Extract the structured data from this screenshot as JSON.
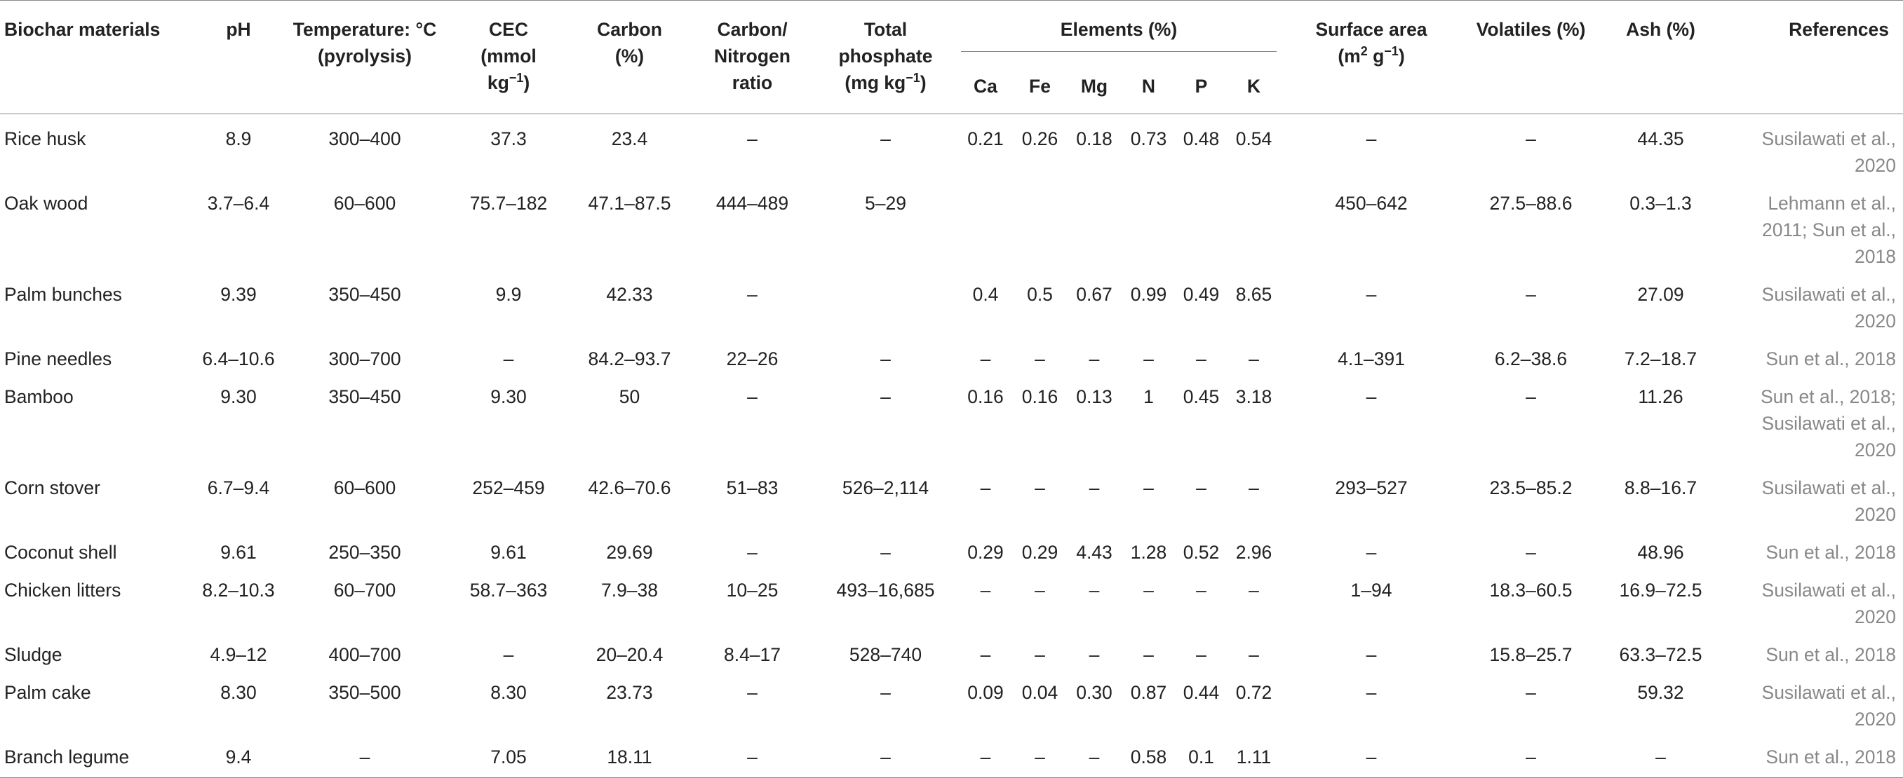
{
  "headers": {
    "material": "Biochar materials",
    "ph": "pH",
    "temp": "Temperature: °C (pyrolysis)",
    "cec_a": "CEC",
    "cec_b": "(mmol",
    "cec_unit": "kg",
    "cec_exp": "−1",
    "cec_close": ")",
    "carbon_a": "Carbon",
    "carbon_b": "(%)",
    "cn_a": "Carbon/",
    "cn_b": "Nitrogen",
    "cn_c": "ratio",
    "tp_a": "Total",
    "tp_b": "phosphate",
    "tp_unit": "(mg kg",
    "tp_exp": "−1",
    "tp_close": ")",
    "elements": "Elements (%)",
    "ca": "Ca",
    "fe": "Fe",
    "mg": "Mg",
    "n": "N",
    "p": "P",
    "k": "K",
    "sa_a": "Surface area",
    "sa_b": "(m",
    "sa_exp1": "2",
    "sa_mid": " g",
    "sa_exp2": "−1",
    "sa_close": ")",
    "volatiles": "Volatiles (%)",
    "ash": "Ash (%)",
    "references": "References"
  },
  "rows": [
    {
      "material": "Rice husk",
      "ph": "8.9",
      "temp": "300–400",
      "cec": "37.3",
      "carbon": "23.4",
      "cn": "–",
      "tp": "–",
      "ca": "0.21",
      "fe": "0.26",
      "mg": "0.18",
      "n": "0.73",
      "p": "0.48",
      "k": "0.54",
      "sa": "–",
      "vol": "–",
      "ash": "44.35",
      "ref": [
        "Susilawati et al.,",
        "2020"
      ]
    },
    {
      "material": "Oak wood",
      "ph": "3.7–6.4",
      "temp": "60–600",
      "cec": "75.7–182",
      "carbon": "47.1–87.5",
      "cn": "444–489",
      "tp": "5–29",
      "ca": "",
      "fe": "",
      "mg": "",
      "n": "",
      "p": "",
      "k": "",
      "sa": "450–642",
      "vol": "27.5–88.6",
      "ash": "0.3–1.3",
      "ref": [
        "Lehmann et al.,",
        "2011; Sun et al.,",
        "2018"
      ]
    },
    {
      "material": "Palm bunches",
      "ph": "9.39",
      "temp": "350–450",
      "cec": "9.9",
      "carbon": "42.33",
      "cn": "–",
      "tp": "",
      "ca": "0.4",
      "fe": "0.5",
      "mg": "0.67",
      "n": "0.99",
      "p": "0.49",
      "k": "8.65",
      "sa": "–",
      "vol": "–",
      "ash": "27.09",
      "ref": [
        "Susilawati et al.,",
        "2020"
      ]
    },
    {
      "material": "Pine needles",
      "ph": "6.4–10.6",
      "temp": "300–700",
      "cec": "–",
      "carbon": "84.2–93.7",
      "cn": "22–26",
      "tp": "–",
      "ca": "–",
      "fe": "–",
      "mg": "–",
      "n": "–",
      "p": "–",
      "k": "–",
      "sa": "4.1–391",
      "vol": "6.2–38.6",
      "ash": "7.2–18.7",
      "ref": [
        "Sun et al., 2018"
      ]
    },
    {
      "material": "Bamboo",
      "ph": "9.30",
      "temp": "350–450",
      "cec": "9.30",
      "carbon": "50",
      "cn": "–",
      "tp": "–",
      "ca": "0.16",
      "fe": "0.16",
      "mg": "0.13",
      "n": "1",
      "p": "0.45",
      "k": "3.18",
      "sa": "–",
      "vol": "–",
      "ash": "11.26",
      "ref": [
        "Sun et al., 2018;",
        "Susilawati et al.,",
        "2020"
      ]
    },
    {
      "material": "Corn stover",
      "ph": "6.7–9.4",
      "temp": "60–600",
      "cec": "252–459",
      "carbon": "42.6–70.6",
      "cn": "51–83",
      "tp": "526–2,114",
      "ca": "–",
      "fe": "–",
      "mg": "–",
      "n": "–",
      "p": "–",
      "k": "–",
      "sa": "293–527",
      "vol": "23.5–85.2",
      "ash": "8.8–16.7",
      "ref": [
        "Susilawati et al.,",
        "2020"
      ]
    },
    {
      "material": "Coconut shell",
      "ph": "9.61",
      "temp": "250–350",
      "cec": "9.61",
      "carbon": "29.69",
      "cn": "–",
      "tp": "–",
      "ca": "0.29",
      "fe": "0.29",
      "mg": "4.43",
      "n": "1.28",
      "p": "0.52",
      "k": "2.96",
      "sa": "–",
      "vol": "–",
      "ash": "48.96",
      "ref": [
        "Sun et al., 2018"
      ]
    },
    {
      "material": "Chicken litters",
      "ph": "8.2–10.3",
      "temp": "60–700",
      "cec": "58.7–363",
      "carbon": "7.9–38",
      "cn": "10–25",
      "tp": "493–16,685",
      "ca": "–",
      "fe": "–",
      "mg": "–",
      "n": "–",
      "p": "–",
      "k": "–",
      "sa": "1–94",
      "vol": "18.3–60.5",
      "ash": "16.9–72.5",
      "ref": [
        "Susilawati et al.,",
        "2020"
      ]
    },
    {
      "material": "Sludge",
      "ph": "4.9–12",
      "temp": "400–700",
      "cec": "–",
      "carbon": "20–20.4",
      "cn": "8.4–17",
      "tp": "528–740",
      "ca": "–",
      "fe": "–",
      "mg": "–",
      "n": "–",
      "p": "–",
      "k": "–",
      "sa": "–",
      "vol": "15.8–25.7",
      "ash": "63.3–72.5",
      "ref": [
        "Sun et al., 2018"
      ]
    },
    {
      "material": "Palm cake",
      "ph": "8.30",
      "temp": "350–500",
      "cec": "8.30",
      "carbon": "23.73",
      "cn": "–",
      "tp": "–",
      "ca": "0.09",
      "fe": "0.04",
      "mg": "0.30",
      "n": "0.87",
      "p": "0.44",
      "k": "0.72",
      "sa": "–",
      "vol": "–",
      "ash": "59.32",
      "ref": [
        "Susilawati et al.,",
        "2020"
      ]
    },
    {
      "material": "Branch legume",
      "ph": "9.4",
      "temp": "–",
      "cec": "7.05",
      "carbon": "18.11",
      "cn": "–",
      "tp": "–",
      "ca": "–",
      "fe": "–",
      "mg": "–",
      "n": "0.58",
      "p": "0.1",
      "k": "1.11",
      "sa": "–",
      "vol": "–",
      "ash": "–",
      "ref": [
        "Sun et al., 2018"
      ]
    }
  ]
}
